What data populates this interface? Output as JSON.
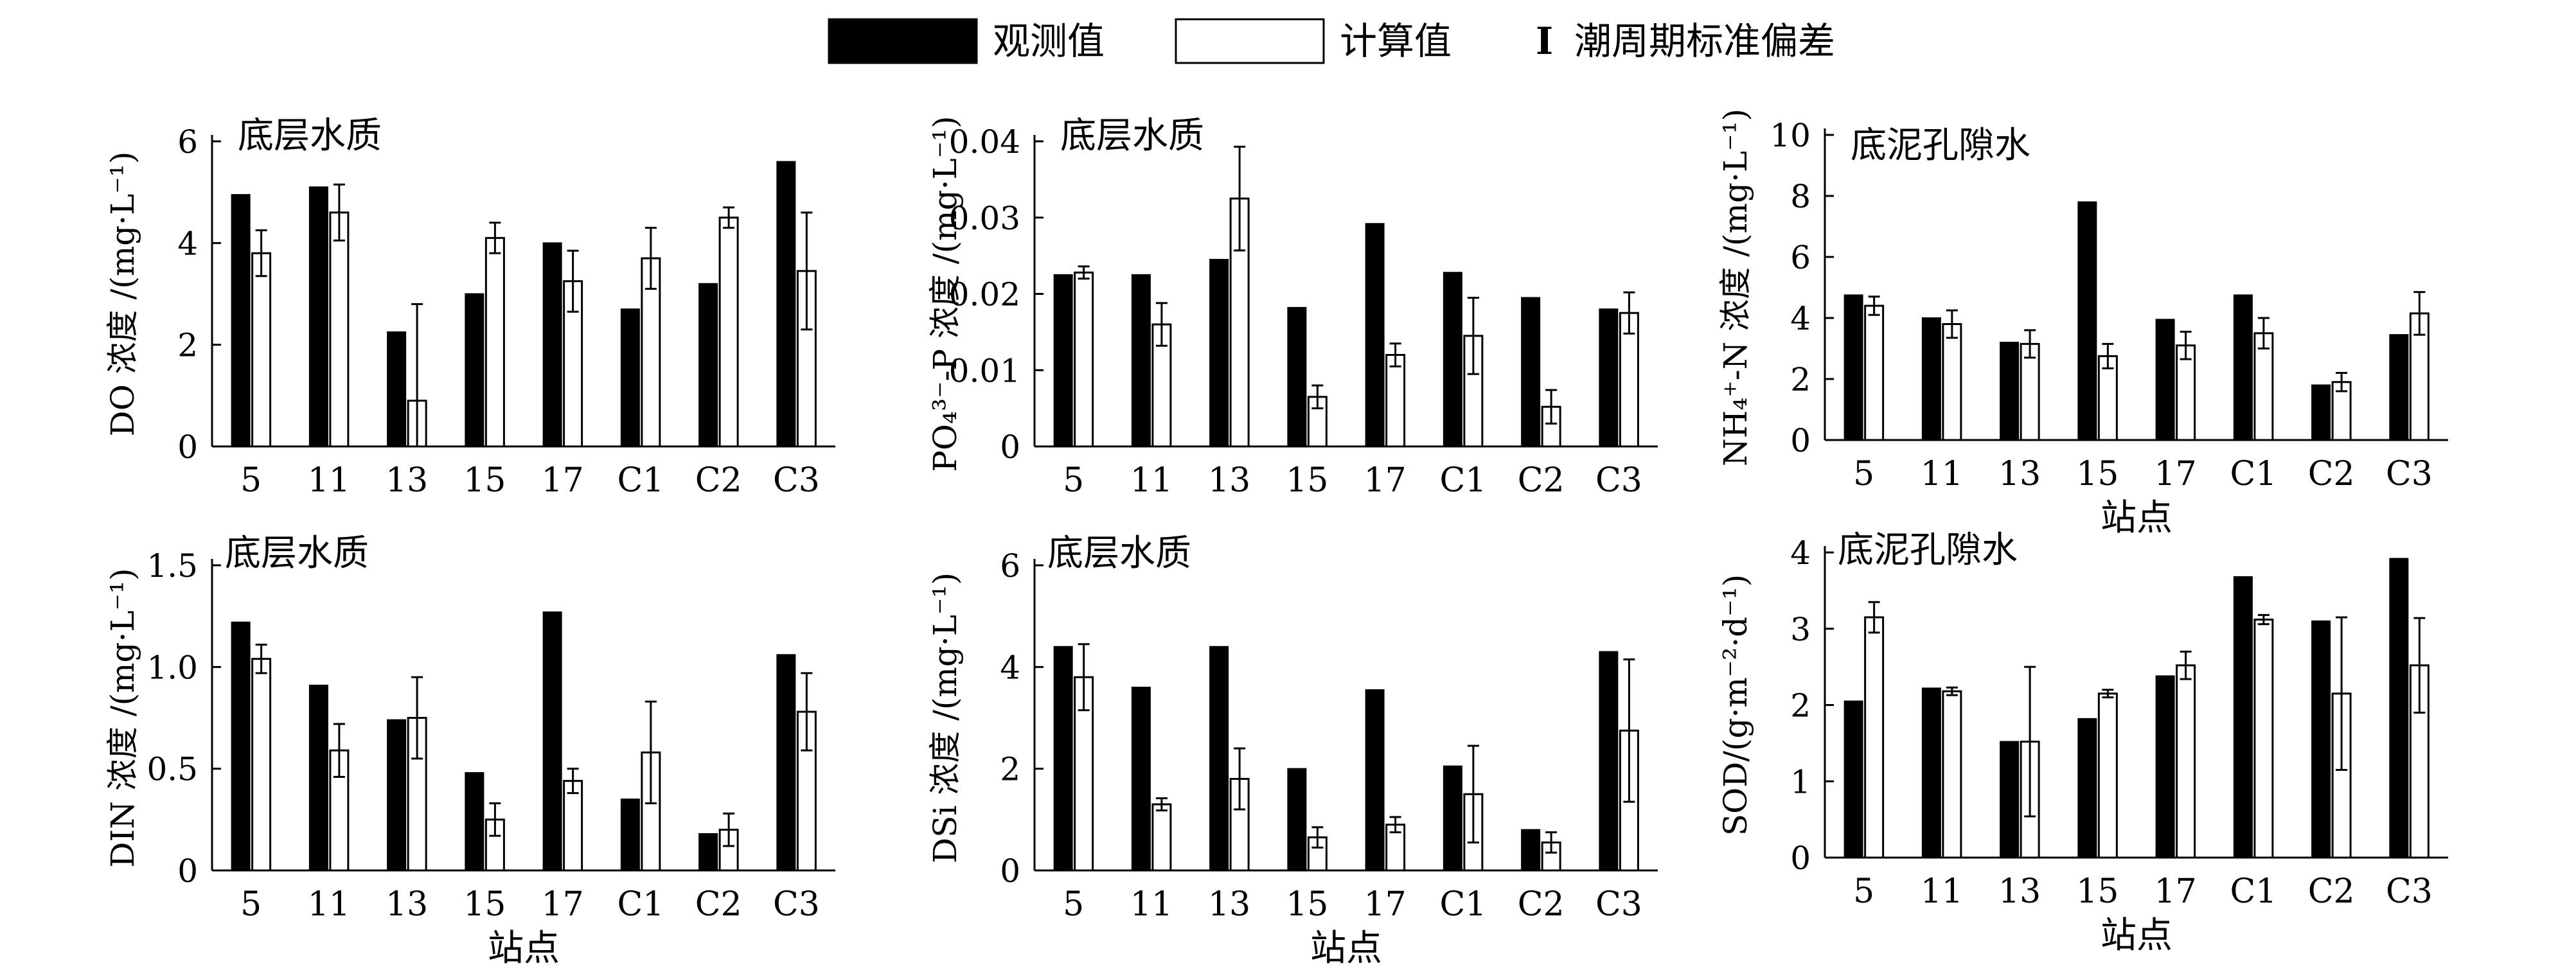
{
  "legend": {
    "observed": "观测值",
    "computed": "计算值",
    "stddev": "潮周期标准偏差",
    "stddev_symbol": "I"
  },
  "colors": {
    "observed": "#000000",
    "computed": "#ffffff",
    "stroke": "#000000"
  },
  "chart_data": [
    {
      "type": "bar",
      "annotation": "底层水质",
      "ylabel": "DO 浓度 /(mg·L⁻¹)",
      "xlabel": "",
      "ylim": [
        0,
        6
      ],
      "yticks": [
        "0",
        "2",
        "4",
        "6"
      ],
      "categories": [
        "5",
        "11",
        "13",
        "15",
        "17",
        "C1",
        "C2",
        "C3"
      ],
      "series": [
        {
          "name": "观测值",
          "values": [
            4.95,
            5.1,
            2.25,
            3.0,
            4.0,
            2.7,
            3.2,
            5.6
          ]
        },
        {
          "name": "计算值",
          "values": [
            3.8,
            4.6,
            0.9,
            4.1,
            3.25,
            3.7,
            4.5,
            3.45
          ],
          "error": [
            0.45,
            0.55,
            1.9,
            0.3,
            0.6,
            0.6,
            0.2,
            1.15
          ]
        }
      ]
    },
    {
      "type": "bar",
      "annotation": "底层水质",
      "ylabel": "PO₄³⁻-P 浓度 /(mg·L⁻¹)",
      "xlabel": "",
      "ylim": [
        0,
        0.04
      ],
      "yticks": [
        "0",
        "0.01",
        "0.02",
        "0.03",
        "0.04"
      ],
      "categories": [
        "5",
        "11",
        "13",
        "15",
        "17",
        "C1",
        "C2",
        "C3"
      ],
      "series": [
        {
          "name": "观测值",
          "values": [
            0.0225,
            0.0225,
            0.0245,
            0.0182,
            0.0292,
            0.0228,
            0.0195,
            0.018
          ]
        },
        {
          "name": "计算值",
          "values": [
            0.0228,
            0.016,
            0.0325,
            0.0065,
            0.012,
            0.0145,
            0.0052,
            0.0175
          ],
          "error": [
            0.0008,
            0.0028,
            0.0068,
            0.0015,
            0.0015,
            0.005,
            0.0022,
            0.0027
          ]
        }
      ]
    },
    {
      "type": "bar",
      "annotation": "底泥孔隙水",
      "ylabel": "NH₄⁺-N 浓度 /(mg·L⁻¹)",
      "xlabel": "站点",
      "ylim": [
        0,
        10
      ],
      "yticks": [
        "0",
        "2",
        "4",
        "6",
        "8",
        "10"
      ],
      "categories": [
        "5",
        "11",
        "13",
        "15",
        "17",
        "C1",
        "C2",
        "C3"
      ],
      "series": [
        {
          "name": "观测值",
          "values": [
            4.75,
            4.0,
            3.2,
            7.8,
            3.95,
            4.75,
            1.8,
            3.45
          ]
        },
        {
          "name": "计算值",
          "values": [
            4.4,
            3.8,
            3.15,
            2.75,
            3.1,
            3.5,
            1.9,
            4.15
          ],
          "error": [
            0.3,
            0.45,
            0.45,
            0.4,
            0.45,
            0.5,
            0.3,
            0.7
          ]
        }
      ]
    },
    {
      "type": "bar",
      "annotation": "底层水质",
      "ylabel": "DIN 浓度 /(mg·L⁻¹)",
      "xlabel": "站点",
      "ylim": [
        0,
        1.5
      ],
      "yticks": [
        "0",
        "0.5",
        "1.0",
        "1.5"
      ],
      "categories": [
        "5",
        "11",
        "13",
        "15",
        "17",
        "C1",
        "C2",
        "C3"
      ],
      "series": [
        {
          "name": "观测值",
          "values": [
            1.22,
            0.91,
            0.74,
            0.48,
            1.27,
            0.35,
            0.18,
            1.06
          ]
        },
        {
          "name": "计算值",
          "values": [
            1.04,
            0.59,
            0.75,
            0.25,
            0.44,
            0.58,
            0.2,
            0.78
          ],
          "error": [
            0.07,
            0.13,
            0.2,
            0.08,
            0.06,
            0.25,
            0.08,
            0.19
          ]
        }
      ]
    },
    {
      "type": "bar",
      "annotation": "底层水质",
      "ylabel": "DSi 浓度 /(mg·L⁻¹)",
      "xlabel": "站点",
      "ylim": [
        0,
        6
      ],
      "yticks": [
        "0",
        "2",
        "4",
        "6"
      ],
      "categories": [
        "5",
        "11",
        "13",
        "15",
        "17",
        "C1",
        "C2",
        "C3"
      ],
      "series": [
        {
          "name": "观测值",
          "values": [
            4.4,
            3.6,
            4.4,
            2.0,
            3.55,
            2.05,
            0.8,
            4.3
          ]
        },
        {
          "name": "计算值",
          "values": [
            3.8,
            1.3,
            1.8,
            0.65,
            0.9,
            1.5,
            0.55,
            2.75
          ],
          "error": [
            0.65,
            0.12,
            0.6,
            0.2,
            0.15,
            0.95,
            0.2,
            1.4
          ]
        }
      ]
    },
    {
      "type": "bar",
      "annotation": "底泥孔隙水",
      "ylabel": "SOD/(g·m⁻²·d⁻¹)",
      "xlabel": "站点",
      "ylim": [
        0,
        4
      ],
      "yticks": [
        "0",
        "1",
        "2",
        "3",
        "4"
      ],
      "categories": [
        "5",
        "11",
        "13",
        "15",
        "17",
        "C1",
        "C2",
        "C3"
      ],
      "series": [
        {
          "name": "观测值",
          "values": [
            2.05,
            2.22,
            1.52,
            1.82,
            2.38,
            3.68,
            3.1,
            3.92
          ]
        },
        {
          "name": "计算值",
          "values": [
            3.15,
            2.18,
            1.52,
            2.15,
            2.52,
            3.12,
            2.15,
            2.52
          ],
          "error": [
            0.2,
            0.05,
            0.98,
            0.05,
            0.18,
            0.06,
            1.0,
            0.62
          ]
        }
      ]
    }
  ]
}
